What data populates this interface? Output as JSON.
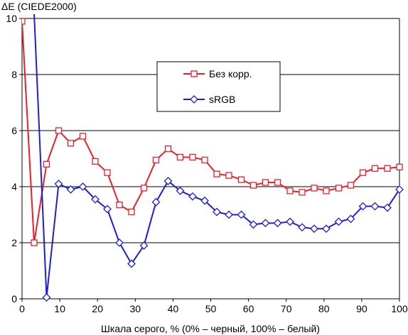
{
  "chart_data": {
    "type": "line",
    "title": "",
    "ylabel": "ΔE (CIEDE2000)",
    "xlabel": "Шкала серого, % (0% – черный, 100% – белый)",
    "xlim": [
      0,
      100
    ],
    "ylim": [
      0,
      10
    ],
    "xticks": [
      "0",
      "10",
      "20",
      "30",
      "40",
      "50",
      "60",
      "70",
      "80",
      "90",
      "100"
    ],
    "yticks": [
      "0",
      "2",
      "4",
      "6",
      "8",
      "10"
    ],
    "grid": "horizontal",
    "legend_placement": "upper-middle",
    "x": [
      0,
      3.2,
      6.5,
      9.7,
      12.9,
      16.1,
      19.4,
      22.6,
      25.8,
      29.0,
      32.3,
      35.5,
      38.7,
      41.9,
      45.2,
      48.4,
      51.6,
      54.8,
      58.1,
      61.3,
      64.5,
      67.7,
      71.0,
      74.2,
      77.4,
      80.6,
      83.9,
      87.1,
      90.3,
      93.5,
      96.8,
      100
    ],
    "series": [
      {
        "name": "Без корр.",
        "color": "#e8202a",
        "marker": "square",
        "values": [
          9.9,
          2.0,
          4.8,
          6.0,
          5.55,
          5.8,
          4.9,
          4.5,
          3.35,
          3.1,
          3.95,
          4.95,
          5.35,
          5.05,
          5.05,
          4.95,
          4.45,
          4.4,
          4.25,
          4.05,
          4.15,
          4.15,
          3.85,
          3.8,
          3.95,
          3.85,
          3.95,
          4.05,
          4.5,
          4.65,
          4.65,
          4.7
        ]
      },
      {
        "name": "sRGB",
        "color": "#1c1fd4",
        "marker": "diamond",
        "values": [
          null,
          10.2,
          0.05,
          4.1,
          3.9,
          4.0,
          3.55,
          3.2,
          2.0,
          1.25,
          1.9,
          3.45,
          4.2,
          3.85,
          3.65,
          3.5,
          3.1,
          3.0,
          3.0,
          2.65,
          2.7,
          2.7,
          2.75,
          2.55,
          2.5,
          2.5,
          2.75,
          2.85,
          3.3,
          3.3,
          3.25,
          3.9
        ]
      }
    ]
  }
}
